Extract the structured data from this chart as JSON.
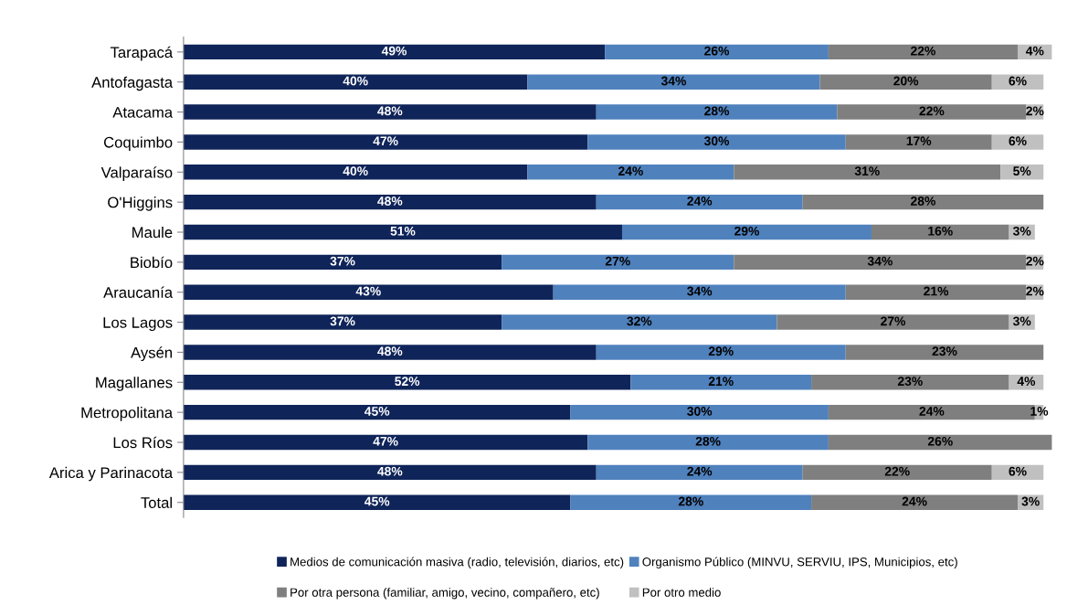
{
  "chart_data": {
    "type": "bar",
    "orientation": "horizontal",
    "stacked": true,
    "tick_labels": "y",
    "grid": false,
    "legend": "bottom",
    "categories": [
      "Tarapacá",
      "Antofagasta",
      "Atacama",
      "Coquimbo",
      "Valparaíso",
      "O'Higgins",
      "Maule",
      "Biobío",
      "Araucanía",
      "Los Lagos",
      "Aysén",
      "Magallanes",
      "Metropolitana",
      "Los Ríos",
      "Arica y Parinacota",
      "Total"
    ],
    "series": [
      {
        "name": "Medios de comunicación masiva (radio, televisión, diarios, etc)",
        "color": "#0f2459",
        "values": [
          49,
          40,
          48,
          47,
          40,
          48,
          51,
          37,
          43,
          37,
          48,
          52,
          45,
          47,
          48,
          45
        ],
        "value_labels": [
          "49%",
          "40%",
          "48%",
          "47%",
          "40%",
          "48%",
          "51%",
          "37%",
          "43%",
          "37%",
          "48%",
          "52%",
          "45%",
          "47%",
          "48%",
          "45%"
        ]
      },
      {
        "name": "Organismo Público (MINVU, SERVIU, IPS, Municipios, etc)",
        "color": "#4f81bd",
        "values": [
          26,
          34,
          28,
          30,
          24,
          24,
          29,
          27,
          34,
          32,
          29,
          21,
          30,
          28,
          24,
          28
        ],
        "value_labels": [
          "26%",
          "34%",
          "28%",
          "30%",
          "24%",
          "24%",
          "29%",
          "27%",
          "34%",
          "32%",
          "29%",
          "21%",
          "30%",
          "28%",
          "24%",
          "28%"
        ]
      },
      {
        "name": "Por otra persona (familiar, amigo, vecino, compañero, etc)",
        "color": "#7f7f7f",
        "values": [
          22,
          20,
          22,
          17,
          31,
          28,
          16,
          34,
          21,
          27,
          23,
          23,
          24,
          26,
          22,
          24
        ],
        "value_labels": [
          "22%",
          "20%",
          "22%",
          "17%",
          "31%",
          "28%",
          "16%",
          "34%",
          "21%",
          "27%",
          "23%",
          "23%",
          "24%",
          "26%",
          "22%",
          "24%"
        ]
      },
      {
        "name": "Por otro medio",
        "color": "#c0c0c0",
        "values": [
          4,
          6,
          2,
          6,
          5,
          null,
          3,
          2,
          2,
          3,
          null,
          4,
          1,
          null,
          6,
          3
        ],
        "value_labels": [
          "4%",
          "6%",
          "2%",
          "6%",
          "5%",
          null,
          "3%",
          "2%",
          "2%",
          "3%",
          null,
          "4%",
          "1%",
          null,
          "6%",
          "3%"
        ]
      }
    ]
  }
}
